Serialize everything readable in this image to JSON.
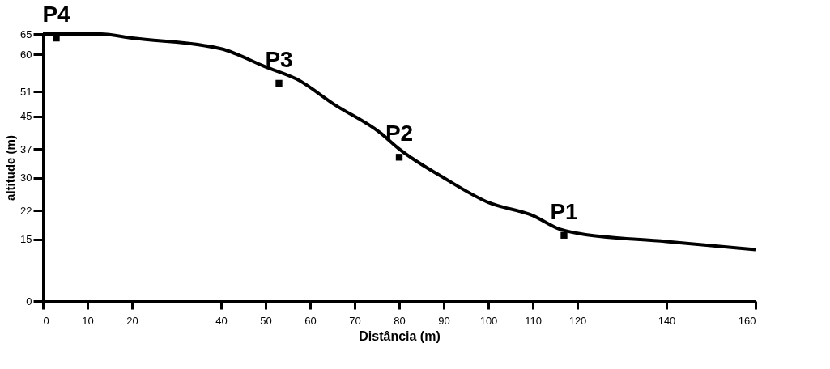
{
  "chart_data": {
    "type": "line",
    "xlabel": "Distância (m)",
    "ylabel": "altitude (m)",
    "xlim": [
      0,
      160
    ],
    "ylim": [
      0,
      65
    ],
    "xticks": [
      0,
      10,
      20,
      40,
      50,
      60,
      70,
      80,
      90,
      100,
      110,
      120,
      140,
      160
    ],
    "yticks": [
      0,
      15,
      22,
      30,
      37,
      45,
      51,
      60,
      65
    ],
    "grid": false,
    "line_style": "solid",
    "series": [
      {
        "color": "#000000",
        "x": [
          0,
          13,
          20,
          40,
          50,
          57,
          65.5,
          75.7,
          80,
          90,
          100,
          110,
          116,
          120,
          140,
          160
        ],
        "values": [
          65,
          65,
          64,
          61.4,
          57,
          54,
          47.8,
          41,
          37,
          30,
          24,
          20.8,
          17.5,
          16.5,
          14.5,
          12.5
        ]
      },
      {
        "type": "scatter",
        "color": "#000000",
        "marker": "square",
        "x": [
          3,
          53,
          80,
          117
        ],
        "values": [
          64,
          53,
          35,
          16
        ]
      }
    ],
    "annotations": [
      {
        "text": "P4",
        "x": 3,
        "y": 64
      },
      {
        "text": "P3",
        "x": 53,
        "y": 53
      },
      {
        "text": "P2",
        "x": 80,
        "y": 35
      },
      {
        "text": "P1",
        "x": 117,
        "y": 16
      }
    ]
  }
}
